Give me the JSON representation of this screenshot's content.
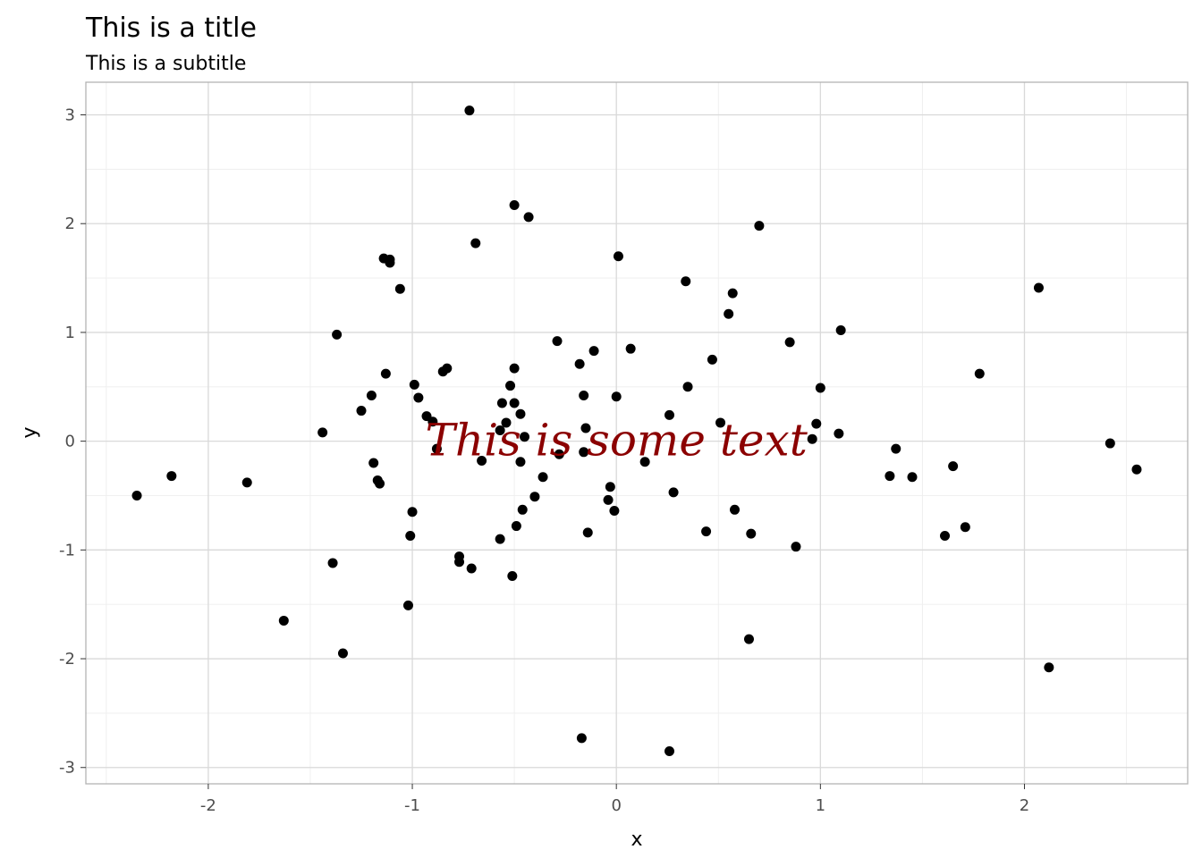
{
  "chart_data": {
    "type": "scatter",
    "title": "This is a title",
    "subtitle": "This is a subtitle",
    "xlabel": "x",
    "ylabel": "y",
    "xlim": [
      -2.6,
      2.8
    ],
    "ylim": [
      -3.15,
      3.3
    ],
    "x_ticks": [
      -2,
      -1,
      0,
      1,
      2
    ],
    "y_ticks": [
      -3,
      -2,
      -1,
      0,
      1,
      2,
      3
    ],
    "x_tick_labels": [
      "-2",
      "-1",
      "0",
      "1",
      "2"
    ],
    "y_tick_labels": [
      "-3",
      "-2",
      "-1",
      "0",
      "1",
      "2",
      "3"
    ],
    "grid": true,
    "point_color": "#000000",
    "annotation": {
      "text": "This is some text",
      "x": 0,
      "y": 0,
      "color": "#8b0000"
    },
    "points": [
      {
        "x": -2.35,
        "y": -0.5
      },
      {
        "x": -2.18,
        "y": -0.32
      },
      {
        "x": -1.81,
        "y": -0.38
      },
      {
        "x": -1.63,
        "y": -1.65
      },
      {
        "x": -1.44,
        "y": 0.08
      },
      {
        "x": -1.39,
        "y": -1.12
      },
      {
        "x": -1.37,
        "y": 0.98
      },
      {
        "x": -1.34,
        "y": -1.95
      },
      {
        "x": -1.25,
        "y": 0.28
      },
      {
        "x": -1.2,
        "y": 0.42
      },
      {
        "x": -1.19,
        "y": -0.2
      },
      {
        "x": -1.17,
        "y": -0.36
      },
      {
        "x": -1.16,
        "y": -0.39
      },
      {
        "x": -1.14,
        "y": 1.68
      },
      {
        "x": -1.13,
        "y": 0.62
      },
      {
        "x": -1.11,
        "y": 1.64
      },
      {
        "x": -1.11,
        "y": 1.67
      },
      {
        "x": -1.06,
        "y": 1.4
      },
      {
        "x": -1.02,
        "y": -1.51
      },
      {
        "x": -1.01,
        "y": -0.87
      },
      {
        "x": -1.0,
        "y": -0.65
      },
      {
        "x": -0.99,
        "y": 0.52
      },
      {
        "x": -0.97,
        "y": 0.4
      },
      {
        "x": -0.93,
        "y": 0.23
      },
      {
        "x": -0.9,
        "y": 0.18
      },
      {
        "x": -0.88,
        "y": -0.07
      },
      {
        "x": -0.85,
        "y": 0.64
      },
      {
        "x": -0.83,
        "y": 0.67
      },
      {
        "x": -0.77,
        "y": -1.06
      },
      {
        "x": -0.77,
        "y": -1.11
      },
      {
        "x": -0.72,
        "y": 3.04
      },
      {
        "x": -0.71,
        "y": -1.17
      },
      {
        "x": -0.69,
        "y": 1.82
      },
      {
        "x": -0.66,
        "y": -0.18
      },
      {
        "x": -0.57,
        "y": 0.1
      },
      {
        "x": -0.57,
        "y": -0.9
      },
      {
        "x": -0.56,
        "y": 0.35
      },
      {
        "x": -0.54,
        "y": 0.17
      },
      {
        "x": -0.52,
        "y": 0.51
      },
      {
        "x": -0.51,
        "y": -1.24
      },
      {
        "x": -0.5,
        "y": 0.67
      },
      {
        "x": -0.5,
        "y": 2.17
      },
      {
        "x": -0.5,
        "y": 0.35
      },
      {
        "x": -0.49,
        "y": -0.78
      },
      {
        "x": -0.47,
        "y": -0.19
      },
      {
        "x": -0.47,
        "y": 0.25
      },
      {
        "x": -0.46,
        "y": -0.63
      },
      {
        "x": -0.45,
        "y": 0.04
      },
      {
        "x": -0.43,
        "y": 2.06
      },
      {
        "x": -0.4,
        "y": -0.51
      },
      {
        "x": -0.36,
        "y": -0.33
      },
      {
        "x": -0.29,
        "y": 0.92
      },
      {
        "x": -0.28,
        "y": -0.12
      },
      {
        "x": -0.18,
        "y": 0.71
      },
      {
        "x": -0.17,
        "y": -2.73
      },
      {
        "x": -0.16,
        "y": 0.42
      },
      {
        "x": -0.16,
        "y": -0.1
      },
      {
        "x": -0.15,
        "y": 0.12
      },
      {
        "x": -0.14,
        "y": -0.84
      },
      {
        "x": -0.11,
        "y": 0.83
      },
      {
        "x": -0.04,
        "y": -0.54
      },
      {
        "x": -0.03,
        "y": -0.42
      },
      {
        "x": -0.01,
        "y": -0.64
      },
      {
        "x": 0.0,
        "y": 0.41
      },
      {
        "x": 0.01,
        "y": 1.7
      },
      {
        "x": 0.07,
        "y": 0.85
      },
      {
        "x": 0.14,
        "y": -0.19
      },
      {
        "x": 0.26,
        "y": 0.24
      },
      {
        "x": 0.26,
        "y": -2.85
      },
      {
        "x": 0.28,
        "y": -0.47
      },
      {
        "x": 0.34,
        "y": 1.47
      },
      {
        "x": 0.35,
        "y": 0.5
      },
      {
        "x": 0.44,
        "y": -0.83
      },
      {
        "x": 0.47,
        "y": 0.75
      },
      {
        "x": 0.51,
        "y": 0.17
      },
      {
        "x": 0.55,
        "y": 1.17
      },
      {
        "x": 0.57,
        "y": 1.36
      },
      {
        "x": 0.58,
        "y": -0.63
      },
      {
        "x": 0.65,
        "y": -1.82
      },
      {
        "x": 0.66,
        "y": -0.85
      },
      {
        "x": 0.7,
        "y": 1.98
      },
      {
        "x": 0.85,
        "y": 0.91
      },
      {
        "x": 0.88,
        "y": -0.97
      },
      {
        "x": 0.96,
        "y": 0.02
      },
      {
        "x": 0.98,
        "y": 0.16
      },
      {
        "x": 1.0,
        "y": 0.49
      },
      {
        "x": 1.09,
        "y": 0.07
      },
      {
        "x": 1.1,
        "y": 1.02
      },
      {
        "x": 1.34,
        "y": -0.32
      },
      {
        "x": 1.37,
        "y": -0.07
      },
      {
        "x": 1.45,
        "y": -0.33
      },
      {
        "x": 1.61,
        "y": -0.87
      },
      {
        "x": 1.65,
        "y": -0.23
      },
      {
        "x": 1.71,
        "y": -0.79
      },
      {
        "x": 1.78,
        "y": 0.62
      },
      {
        "x": 2.07,
        "y": 1.41
      },
      {
        "x": 2.12,
        "y": -2.08
      },
      {
        "x": 2.42,
        "y": -0.02
      },
      {
        "x": 2.55,
        "y": -0.26
      }
    ]
  }
}
